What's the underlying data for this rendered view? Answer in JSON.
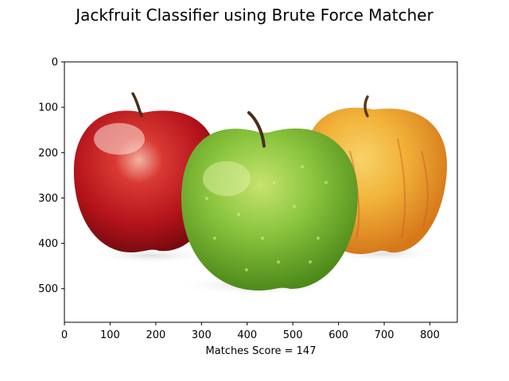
{
  "figure": {
    "title": "Jackfruit Classifier using Brute Force Matcher",
    "xlabel": "Matches Score =  147"
  },
  "chart_data": {
    "type": "image",
    "title": "Jackfruit Classifier using Brute Force Matcher",
    "xlabel": "Matches Score =  147",
    "ylabel": "",
    "xlim": [
      0,
      860
    ],
    "ylim": [
      574,
      0
    ],
    "xticks": [
      0,
      100,
      200,
      300,
      400,
      500,
      600,
      700,
      800
    ],
    "yticks": [
      0,
      100,
      200,
      300,
      400,
      500
    ],
    "grid": false,
    "image_content": [
      {
        "name": "red-apple",
        "colors": [
          "#b3131a",
          "#d93a33",
          "#f3b3a4"
        ]
      },
      {
        "name": "green-apple",
        "colors": [
          "#5e9e1f",
          "#8cc63f",
          "#c6e36f"
        ]
      },
      {
        "name": "yellow-apple",
        "colors": [
          "#e28a18",
          "#f2b33a",
          "#f7d36b"
        ]
      }
    ]
  }
}
